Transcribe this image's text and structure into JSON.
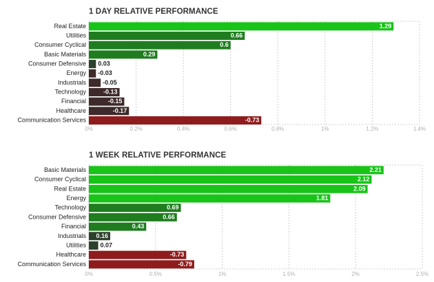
{
  "chart_data": [
    {
      "type": "bar",
      "orientation": "horizontal",
      "title": "1 DAY RELATIVE PERFORMANCE",
      "categories": [
        "Real Estate",
        "Utilities",
        "Consumer Cyclical",
        "Basic Materials",
        "Consumer Defensive",
        "Energy",
        "Industrials",
        "Technology",
        "Financial",
        "Healthcare",
        "Communication Services"
      ],
      "values": [
        1.29,
        0.66,
        0.6,
        0.29,
        0.03,
        -0.03,
        -0.05,
        -0.13,
        -0.15,
        -0.17,
        -0.73
      ],
      "value_labels": [
        "1.29",
        "0.66",
        "0.6",
        "0.29",
        "0.03",
        "-0.03",
        "-0.05",
        "-0.13",
        "-0.15",
        "-0.17",
        "-0.73"
      ],
      "xlim": [
        0,
        1.4
      ],
      "xticks": [
        0,
        0.2,
        0.4,
        0.6,
        0.8,
        1.0,
        1.2,
        1.4
      ],
      "xtick_labels": [
        "0%",
        "0.2%",
        "0.4%",
        "0.6%",
        "0.8%",
        "1%",
        "1.2%",
        "1.4%"
      ],
      "grid": true,
      "bar_lengths": "absolute value",
      "colors": {
        "positive_strong": "#18c418",
        "positive_medium": "#1f7d1f",
        "positive_weak": "#2d412d",
        "negative_weak": "#3e2a2a",
        "negative_strong": "#8f1c1c"
      }
    },
    {
      "type": "bar",
      "orientation": "horizontal",
      "title": "1 WEEK RELATIVE PERFORMANCE",
      "categories": [
        "Basic Materials",
        "Consumer Cyclical",
        "Real Estate",
        "Energy",
        "Technology",
        "Consumer Defensive",
        "Financial",
        "Industrials",
        "Utilities",
        "Healthcare",
        "Communication Services"
      ],
      "values": [
        2.21,
        2.12,
        2.09,
        1.81,
        0.69,
        0.66,
        0.43,
        0.16,
        0.07,
        -0.73,
        -0.79
      ],
      "value_labels": [
        "2.21",
        "2.12",
        "2.09",
        "1.81",
        "0.69",
        "0.66",
        "0.43",
        "0.16",
        "0.07",
        "-0.73",
        "-0.79"
      ],
      "xlim": [
        0,
        2.5
      ],
      "xticks": [
        0,
        0.5,
        1.0,
        1.5,
        2.0,
        2.5
      ],
      "xtick_labels": [
        "0%",
        "0.5%",
        "1%",
        "1.5%",
        "2%",
        "2.5%"
      ],
      "grid": true,
      "bar_lengths": "absolute value",
      "colors": {
        "positive_strong": "#18c418",
        "positive_medium": "#1f7d1f",
        "positive_weak": "#2d412d",
        "negative_weak": "#3e2a2a",
        "negative_strong": "#8f1c1c"
      }
    }
  ]
}
